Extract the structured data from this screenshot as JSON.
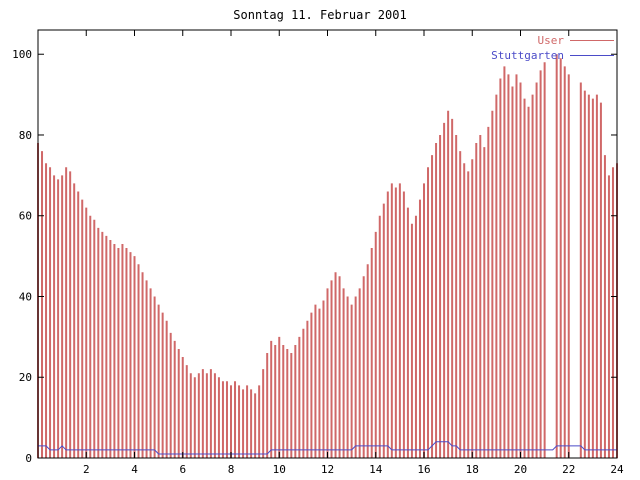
{
  "chart_data": {
    "type": "bar",
    "title": "Sonntag 11. Februar 2001",
    "xlabel": "",
    "ylabel": "",
    "xlim": [
      0,
      24
    ],
    "ylim": [
      0,
      106
    ],
    "x_ticks": [
      2,
      4,
      6,
      8,
      10,
      12,
      14,
      16,
      18,
      20,
      22,
      24
    ],
    "y_ticks": [
      0,
      20,
      40,
      60,
      80,
      100
    ],
    "x_step_hours": 0.1666667,
    "grid": false,
    "legend_position": "top-right-inside",
    "colors": {
      "user": "#d06868",
      "stuttgart": "#4b4bc8",
      "axis": "#000000"
    },
    "series": [
      {
        "name": "User",
        "style": "impulses",
        "values": [
          78,
          76,
          73,
          72,
          70,
          69,
          70,
          72,
          71,
          68,
          66,
          64,
          62,
          60,
          59,
          57,
          56,
          55,
          54,
          53,
          52,
          53,
          52,
          51,
          50,
          48,
          46,
          44,
          42,
          40,
          38,
          36,
          34,
          31,
          29,
          27,
          25,
          23,
          21,
          20,
          21,
          22,
          21,
          22,
          21,
          20,
          19,
          19,
          18,
          19,
          18,
          17,
          18,
          17,
          16,
          18,
          22,
          26,
          29,
          28,
          30,
          28,
          27,
          26,
          28,
          30,
          32,
          34,
          36,
          38,
          37,
          39,
          42,
          44,
          46,
          45,
          42,
          40,
          38,
          40,
          42,
          45,
          48,
          52,
          56,
          60,
          63,
          66,
          68,
          67,
          68,
          66,
          62,
          58,
          60,
          64,
          68,
          72,
          75,
          78,
          80,
          83,
          86,
          84,
          80,
          76,
          73,
          71,
          74,
          78,
          80,
          77,
          82,
          86,
          90,
          94,
          97,
          95,
          92,
          95,
          93,
          89,
          87,
          90,
          93,
          96,
          98,
          null,
          null,
          100,
          99,
          97,
          95,
          null,
          null,
          93,
          91,
          90,
          89,
          90,
          88,
          75,
          70,
          72,
          73
        ]
      },
      {
        "name": "Stuttgarten",
        "style": "line",
        "values": [
          3,
          3,
          3,
          2,
          2,
          2,
          3,
          2,
          2,
          2,
          2,
          2,
          2,
          2,
          2,
          2,
          2,
          2,
          2,
          2,
          2,
          2,
          2,
          2,
          2,
          2,
          2,
          2,
          2,
          2,
          1,
          1,
          1,
          1,
          1,
          1,
          1,
          1,
          1,
          1,
          1,
          1,
          1,
          1,
          1,
          1,
          1,
          1,
          1,
          1,
          1,
          1,
          1,
          1,
          1,
          1,
          1,
          1,
          2,
          2,
          2,
          2,
          2,
          2,
          2,
          2,
          2,
          2,
          2,
          2,
          2,
          2,
          2,
          2,
          2,
          2,
          2,
          2,
          2,
          3,
          3,
          3,
          3,
          3,
          3,
          3,
          3,
          3,
          2,
          2,
          2,
          2,
          2,
          2,
          2,
          2,
          2,
          2,
          3,
          4,
          4,
          4,
          4,
          3,
          3,
          2,
          2,
          2,
          2,
          2,
          2,
          2,
          2,
          2,
          2,
          2,
          2,
          2,
          2,
          2,
          2,
          2,
          2,
          2,
          2,
          2,
          2,
          2,
          2,
          3,
          3,
          3,
          3,
          3,
          3,
          3,
          2,
          2,
          2,
          2,
          2,
          2,
          2,
          2,
          2
        ]
      }
    ]
  }
}
